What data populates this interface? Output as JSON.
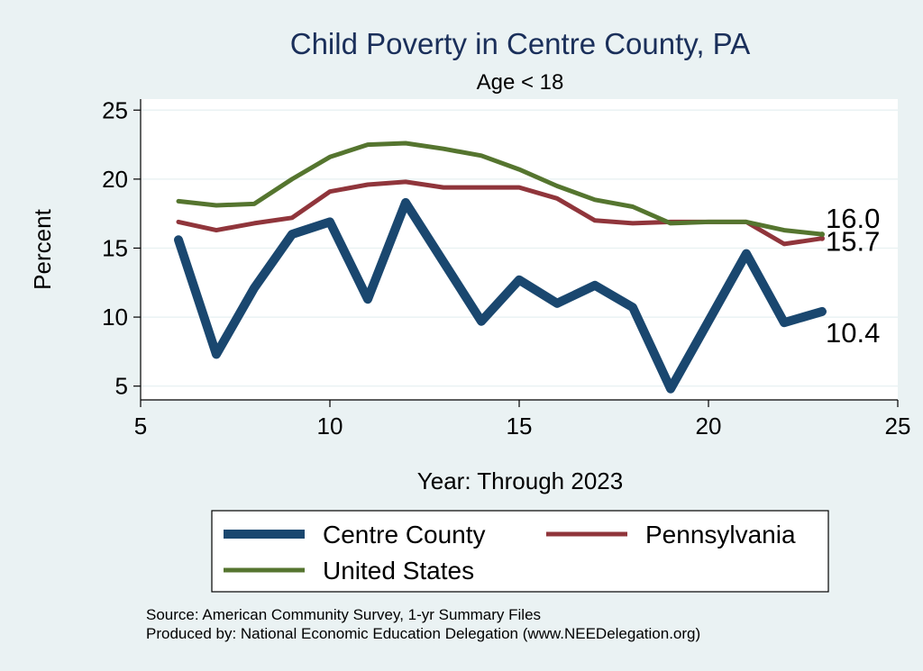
{
  "chart_data": {
    "type": "line",
    "title": "Child Poverty in Centre County, PA",
    "subtitle": "Age < 18",
    "xlabel": "Year: Through 2023",
    "ylabel": "Percent",
    "xlim": [
      5,
      25
    ],
    "ylim": [
      4,
      25.8
    ],
    "xticks": [
      5,
      10,
      15,
      20,
      25
    ],
    "yticks": [
      5,
      10,
      15,
      20,
      25
    ],
    "grid": "horizontal",
    "legend_position": "bottom",
    "series": [
      {
        "name": "Centre County",
        "color": "#1a476f",
        "width": "thick",
        "x": [
          6,
          7,
          8,
          9,
          10,
          11,
          12,
          13,
          14,
          15,
          16,
          17,
          18,
          19,
          20,
          21,
          22,
          23
        ],
        "y": [
          15.6,
          7.3,
          12.1,
          16.0,
          16.9,
          11.3,
          18.3,
          14.0,
          9.7,
          12.7,
          11.0,
          12.3,
          10.7,
          4.8,
          9.7,
          14.6,
          9.6,
          10.4
        ],
        "end_label": "10.4"
      },
      {
        "name": "Pennsylvania",
        "color": "#90353b",
        "width": "medium",
        "x": [
          6,
          7,
          8,
          9,
          10,
          11,
          12,
          13,
          14,
          15,
          16,
          17,
          18,
          19,
          20,
          21,
          22,
          23
        ],
        "y": [
          16.9,
          16.3,
          16.8,
          17.2,
          19.1,
          19.6,
          19.8,
          19.4,
          19.4,
          19.4,
          18.6,
          17.0,
          16.8,
          16.9,
          16.9,
          16.9,
          15.3,
          15.7
        ],
        "end_label": "15.7"
      },
      {
        "name": "United States",
        "color": "#55752f",
        "width": "medium",
        "x": [
          6,
          7,
          8,
          9,
          10,
          11,
          12,
          13,
          14,
          15,
          16,
          17,
          18,
          19,
          20,
          21,
          22,
          23
        ],
        "y": [
          18.4,
          18.1,
          18.2,
          20.0,
          21.6,
          22.5,
          22.6,
          22.2,
          21.7,
          20.7,
          19.5,
          18.5,
          18.0,
          16.8,
          16.9,
          16.9,
          16.3,
          16.0
        ],
        "end_label": "16.0"
      }
    ],
    "legend": [
      "Centre County",
      "Pennsylvania",
      "United States"
    ],
    "source_lines": [
      "Source: American Community Survey, 1-yr Summary Files",
      "Produced by: National Economic Education Delegation (www.NEEDelegation.org)"
    ]
  }
}
